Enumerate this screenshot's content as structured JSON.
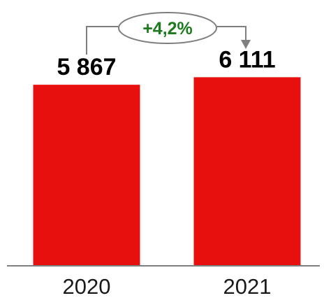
{
  "chart_data": {
    "type": "bar",
    "categories": [
      "2020",
      "2021"
    ],
    "values": [
      5867,
      6111
    ],
    "value_labels": [
      "5 867",
      "6 111"
    ],
    "ylim": [
      0,
      6800
    ],
    "grid": false,
    "legend": "none",
    "annotation": {
      "text": "+4,2%",
      "from": "2020",
      "to": "2021",
      "color": "#1e7a1e"
    },
    "colors": {
      "bar": "#e8100e",
      "axis": "#7f7f7f",
      "connector": "#7f7f7f",
      "label": "#000000"
    }
  }
}
